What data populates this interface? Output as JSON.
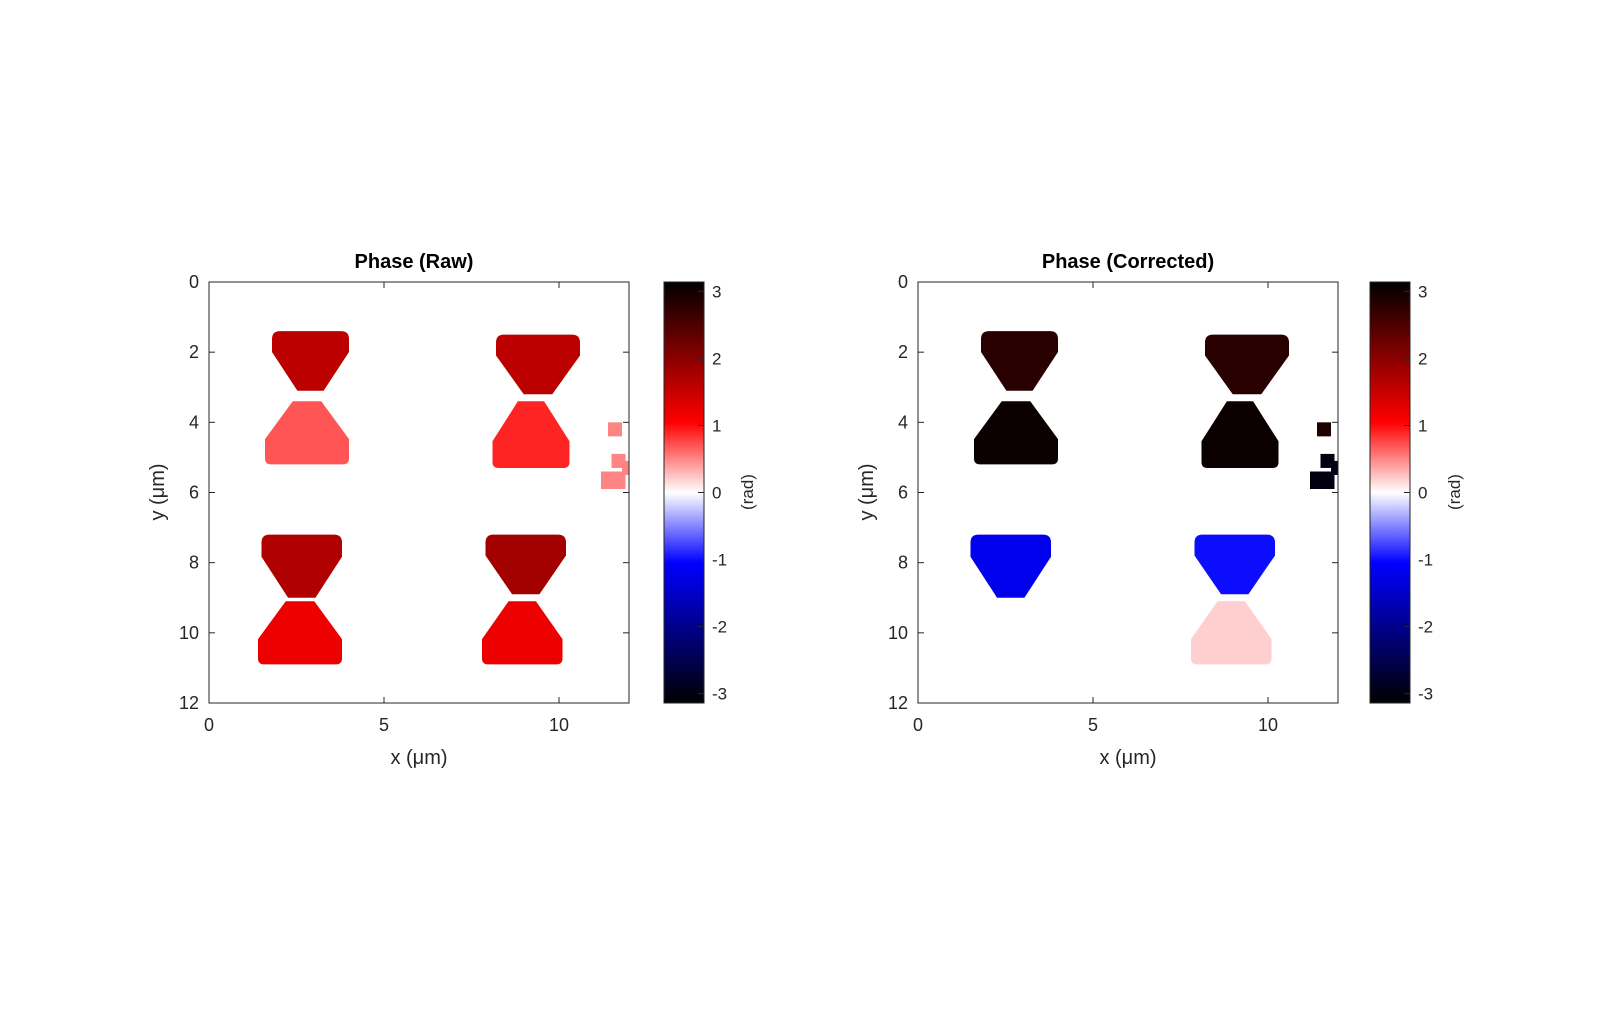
{
  "chart_data": [
    {
      "type": "heatmap",
      "title": "Phase (Raw)",
      "xlabel": "x (μm)",
      "ylabel": "y (μm)",
      "xlim": [
        0,
        12
      ],
      "ylim": [
        0,
        12
      ],
      "y_reversed": true,
      "xticks": [
        "0",
        "5",
        "10"
      ],
      "yticks": [
        "0",
        "2",
        "4",
        "6",
        "8",
        "10",
        "12"
      ],
      "colorbar": {
        "label": "(rad)",
        "ticks": [
          "3",
          "2",
          "1",
          "0",
          "-1",
          "-2",
          "-3"
        ],
        "range": [
          -3.14,
          3.14
        ],
        "colormap": "blue-white-red"
      },
      "regions": [
        {
          "name": "top-left upper lobe",
          "x": [
            1.8,
            4.0
          ],
          "y": [
            1.4,
            3.1
          ],
          "shape": "up",
          "value": 1.6
        },
        {
          "name": "top-left lower lobe",
          "x": [
            1.6,
            4.0
          ],
          "y": [
            3.4,
            5.2
          ],
          "shape": "down",
          "value": 0.7
        },
        {
          "name": "top-right upper lobe",
          "x": [
            8.2,
            10.6
          ],
          "y": [
            1.5,
            3.2
          ],
          "shape": "up",
          "value": 1.6
        },
        {
          "name": "top-right lower lobe",
          "x": [
            8.1,
            10.3
          ],
          "y": [
            3.4,
            5.3
          ],
          "shape": "down",
          "value": 0.9
        },
        {
          "name": "bottom-left upper lobe",
          "x": [
            1.5,
            3.8
          ],
          "y": [
            7.2,
            9.0
          ],
          "shape": "up",
          "value": 1.7
        },
        {
          "name": "bottom-left lower lobe",
          "x": [
            1.4,
            3.8
          ],
          "y": [
            9.1,
            10.9
          ],
          "shape": "down",
          "value": 1.2
        },
        {
          "name": "bottom-right upper lobe",
          "x": [
            7.9,
            10.2
          ],
          "y": [
            7.2,
            8.9
          ],
          "shape": "up",
          "value": 1.8
        },
        {
          "name": "bottom-right lower lobe",
          "x": [
            7.8,
            10.1
          ],
          "y": [
            9.1,
            10.9
          ],
          "shape": "down",
          "value": 1.2
        },
        {
          "name": "fragment 1",
          "x": [
            11.4,
            11.8
          ],
          "y": [
            4.0,
            4.4
          ],
          "shape": "rect",
          "value": 0.5
        },
        {
          "name": "fragment 2",
          "x": [
            11.5,
            11.9
          ],
          "y": [
            4.9,
            5.3
          ],
          "shape": "rect",
          "value": 0.5
        },
        {
          "name": "fragment 3",
          "x": [
            11.2,
            11.9
          ],
          "y": [
            5.4,
            5.9
          ],
          "shape": "rect",
          "value": 0.5
        },
        {
          "name": "fragment 4",
          "x": [
            11.8,
            12.0
          ],
          "y": [
            5.1,
            5.5
          ],
          "shape": "rect",
          "value": 0.5
        }
      ]
    },
    {
      "type": "heatmap",
      "title": "Phase (Corrected)",
      "xlabel": "x (μm)",
      "ylabel": "y (μm)",
      "xlim": [
        0,
        12
      ],
      "ylim": [
        0,
        12
      ],
      "y_reversed": true,
      "xticks": [
        "0",
        "5",
        "10"
      ],
      "yticks": [
        "0",
        "2",
        "4",
        "6",
        "8",
        "10",
        "12"
      ],
      "colorbar": {
        "label": "(rad)",
        "ticks": [
          "3",
          "2",
          "1",
          "0",
          "-1",
          "-2",
          "-3"
        ],
        "range": [
          -3.14,
          3.14
        ],
        "colormap": "blue-white-red"
      },
      "regions": [
        {
          "name": "top-left upper lobe",
          "x": [
            1.8,
            4.0
          ],
          "y": [
            1.4,
            3.1
          ],
          "shape": "up",
          "value": 2.8
        },
        {
          "name": "top-left lower lobe",
          "x": [
            1.6,
            4.0
          ],
          "y": [
            3.4,
            5.2
          ],
          "shape": "down",
          "value": 3.05
        },
        {
          "name": "top-right upper lobe",
          "x": [
            8.2,
            10.6
          ],
          "y": [
            1.5,
            3.2
          ],
          "shape": "up",
          "value": 2.8
        },
        {
          "name": "top-right lower lobe",
          "x": [
            8.1,
            10.3
          ],
          "y": [
            3.4,
            5.3
          ],
          "shape": "down",
          "value": 3.05
        },
        {
          "name": "bottom-left upper lobe",
          "x": [
            1.5,
            3.8
          ],
          "y": [
            7.2,
            9.0
          ],
          "shape": "up",
          "value": -1.2
        },
        {
          "name": "bottom-left lower lobe",
          "x": [
            1.4,
            3.8
          ],
          "y": [
            9.1,
            10.9
          ],
          "shape": "down",
          "value": 0.0
        },
        {
          "name": "bottom-right upper lobe",
          "x": [
            7.9,
            10.2
          ],
          "y": [
            7.2,
            8.9
          ],
          "shape": "up",
          "value": -1.0
        },
        {
          "name": "bottom-right lower lobe",
          "x": [
            7.8,
            10.1
          ],
          "y": [
            9.1,
            10.9
          ],
          "shape": "down",
          "value": 0.2
        },
        {
          "name": "fragment 1",
          "x": [
            11.4,
            11.8
          ],
          "y": [
            4.0,
            4.4
          ],
          "shape": "rect",
          "value": 2.9
        },
        {
          "name": "fragment 2",
          "x": [
            11.5,
            11.9
          ],
          "y": [
            4.9,
            5.3
          ],
          "shape": "rect",
          "value": -3.0
        },
        {
          "name": "fragment 3",
          "x": [
            11.2,
            11.9
          ],
          "y": [
            5.4,
            5.9
          ],
          "shape": "rect",
          "value": -3.0
        },
        {
          "name": "fragment 4",
          "x": [
            11.8,
            12.0
          ],
          "y": [
            5.1,
            5.5
          ],
          "shape": "rect",
          "value": -3.0
        }
      ]
    }
  ]
}
